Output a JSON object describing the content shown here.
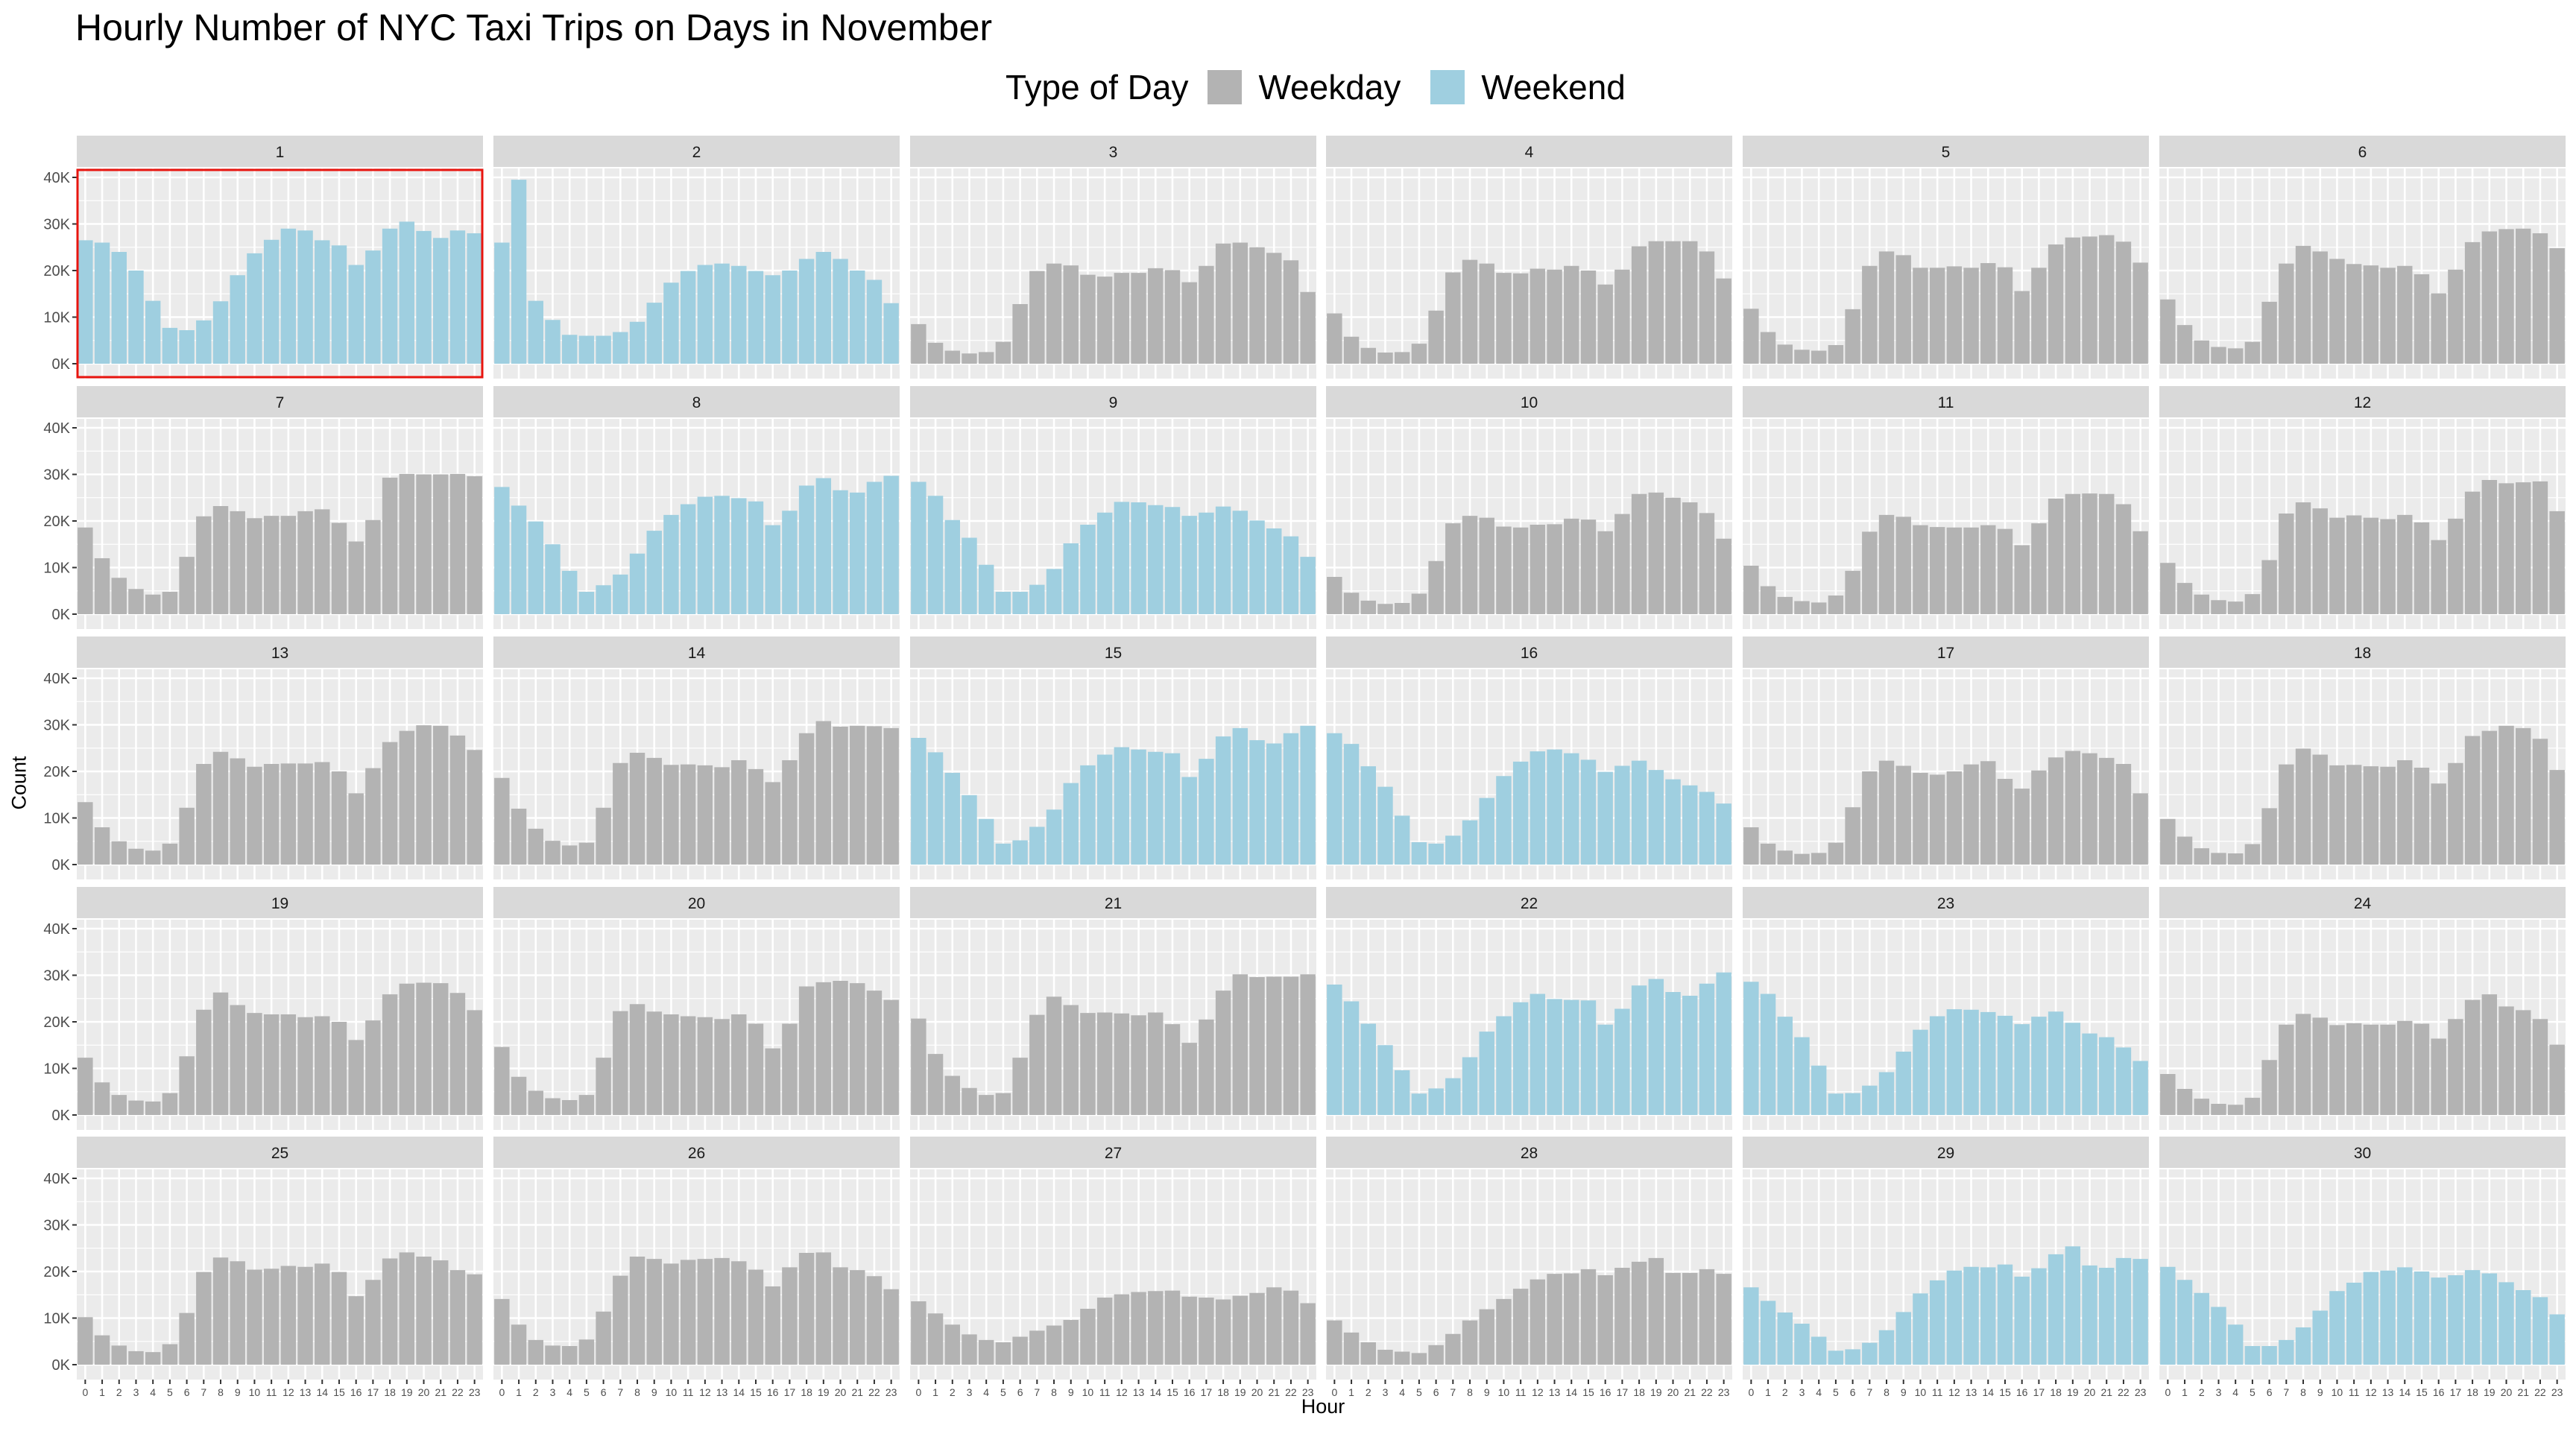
{
  "title": "Hourly Number of NYC Taxi Trips on Days in November",
  "legend": {
    "title": "Type of Day",
    "items": [
      {
        "label": "Weekday",
        "color": "#b3b3b3"
      },
      {
        "label": "Weekend",
        "color": "#9fcfe0"
      }
    ]
  },
  "colors": {
    "panel_bg": "#ebebeb",
    "strip_bg": "#d9d9d9",
    "grid": "#ffffff",
    "weekday": "#b3b3b3",
    "weekend": "#9fcfe0",
    "highlight_box": "#e8150f"
  },
  "chart_data": {
    "type": "bar",
    "facet_by": "day",
    "xlabel": "Hour",
    "ylabel": "Count",
    "ylim": [
      0,
      40000
    ],
    "y_ticks": [
      0,
      10000,
      20000,
      30000,
      40000
    ],
    "y_tick_labels": [
      "0K",
      "10K",
      "20K",
      "30K",
      "40K"
    ],
    "x": [
      0,
      1,
      2,
      3,
      4,
      5,
      6,
      7,
      8,
      9,
      10,
      11,
      12,
      13,
      14,
      15,
      16,
      17,
      18,
      19,
      20,
      21,
      22,
      23
    ],
    "grid": true,
    "legend_position": "top",
    "highlighted_panel": "1",
    "panels": [
      {
        "day": "1",
        "type": "Weekend",
        "values": [
          26500,
          26000,
          24000,
          20000,
          13500,
          7700,
          7200,
          9300,
          13400,
          19000,
          23700,
          26600,
          29000,
          28600,
          26500,
          25400,
          21200,
          24300,
          29000,
          30500,
          28500,
          27000,
          28600,
          28000
        ]
      },
      {
        "day": "2",
        "type": "Weekend",
        "values": [
          26000,
          39500,
          13500,
          9400,
          6200,
          6000,
          6000,
          6800,
          9000,
          13100,
          17400,
          19900,
          21200,
          21500,
          21000,
          19900,
          19000,
          20000,
          22500,
          24000,
          22500,
          20000,
          18000,
          13000
        ]
      },
      {
        "day": "3",
        "type": "Weekday",
        "values": [
          8500,
          4500,
          2800,
          2200,
          2500,
          4700,
          12800,
          19900,
          21500,
          21100,
          19100,
          18700,
          19500,
          19500,
          20500,
          20100,
          17500,
          21000,
          25800,
          26000,
          25000,
          23800,
          22200,
          15400
        ]
      },
      {
        "day": "4",
        "type": "Weekday",
        "values": [
          10800,
          5800,
          3400,
          2400,
          2500,
          4300,
          11400,
          19600,
          22300,
          21500,
          19500,
          19400,
          20400,
          20200,
          21000,
          20000,
          17000,
          20200,
          25200,
          26300,
          26300,
          26300,
          24100,
          18300
        ]
      },
      {
        "day": "5",
        "type": "Weekday",
        "values": [
          11800,
          6800,
          4100,
          3000,
          2800,
          4000,
          11700,
          21000,
          24100,
          23300,
          20600,
          20600,
          20900,
          20600,
          21600,
          20700,
          15600,
          20600,
          25600,
          27100,
          27300,
          27600,
          26200,
          21700
        ]
      },
      {
        "day": "6",
        "type": "Weekday",
        "values": [
          13800,
          8300,
          5000,
          3600,
          3300,
          4700,
          13300,
          21500,
          25300,
          24100,
          22500,
          21400,
          21100,
          20600,
          21000,
          19200,
          15100,
          20200,
          26100,
          28400,
          28900,
          29000,
          28000,
          24800
        ]
      },
      {
        "day": "7",
        "type": "Weekday",
        "values": [
          18600,
          12000,
          7800,
          5400,
          4200,
          4800,
          12300,
          21000,
          23200,
          22100,
          20600,
          21100,
          21100,
          22100,
          22500,
          19600,
          15600,
          20200,
          29300,
          30100,
          30000,
          30000,
          30100,
          29600
        ]
      },
      {
        "day": "8",
        "type": "Weekend",
        "values": [
          27300,
          23300,
          19900,
          15000,
          9300,
          4800,
          6200,
          8500,
          13000,
          17900,
          21300,
          23600,
          25200,
          25400,
          24900,
          24200,
          19100,
          22200,
          27600,
          29200,
          26600,
          26100,
          28400,
          29700
        ]
      },
      {
        "day": "9",
        "type": "Weekend",
        "values": [
          28400,
          25400,
          20200,
          16400,
          10600,
          4800,
          4800,
          6300,
          9700,
          15200,
          19200,
          21800,
          24100,
          24000,
          23400,
          23000,
          21100,
          21800,
          23100,
          22200,
          20100,
          18400,
          16700,
          12300
        ]
      },
      {
        "day": "10",
        "type": "Weekday",
        "values": [
          8000,
          4600,
          2900,
          2200,
          2400,
          4400,
          11400,
          19500,
          21100,
          20700,
          18800,
          18600,
          19200,
          19300,
          20500,
          20300,
          17800,
          21500,
          25800,
          26100,
          25000,
          24000,
          21700,
          16200
        ]
      },
      {
        "day": "11",
        "type": "Weekday",
        "values": [
          10400,
          6000,
          3700,
          2800,
          2500,
          4000,
          9300,
          17700,
          21300,
          20900,
          19100,
          18700,
          18600,
          18600,
          19100,
          18300,
          14800,
          19500,
          24800,
          25800,
          25900,
          25800,
          23600,
          17800
        ]
      },
      {
        "day": "12",
        "type": "Weekday",
        "values": [
          11000,
          6700,
          4200,
          3000,
          2700,
          4300,
          11600,
          21600,
          24000,
          22700,
          20700,
          21200,
          20700,
          20400,
          21300,
          19700,
          15900,
          20500,
          26300,
          28800,
          28100,
          28300,
          28500,
          22100
        ]
      },
      {
        "day": "13",
        "type": "Weekday",
        "values": [
          13400,
          8000,
          5000,
          3400,
          3000,
          4500,
          12200,
          21600,
          24200,
          22800,
          21000,
          21600,
          21700,
          21700,
          22000,
          20000,
          15300,
          20700,
          26300,
          28700,
          29900,
          29800,
          27700,
          24600
        ]
      },
      {
        "day": "14",
        "type": "Weekday",
        "values": [
          18600,
          12000,
          7700,
          5100,
          4100,
          4700,
          12200,
          21800,
          24000,
          22900,
          21400,
          21500,
          21300,
          20900,
          22400,
          20500,
          17700,
          22400,
          28200,
          30800,
          29600,
          29800,
          29700,
          29300
        ]
      },
      {
        "day": "15",
        "type": "Weekend",
        "values": [
          27200,
          24100,
          19700,
          14900,
          9800,
          4500,
          5200,
          8100,
          11800,
          17500,
          21300,
          23600,
          25200,
          24700,
          24200,
          23900,
          18800,
          22700,
          27500,
          29300,
          26700,
          26000,
          28200,
          29800
        ]
      },
      {
        "day": "16",
        "type": "Weekend",
        "values": [
          28200,
          25900,
          21100,
          16700,
          10500,
          4800,
          4500,
          6200,
          9500,
          14300,
          19000,
          22100,
          24300,
          24700,
          23900,
          22500,
          19900,
          21200,
          22300,
          20300,
          18300,
          17000,
          15600,
          13100
        ]
      },
      {
        "day": "17",
        "type": "Weekday",
        "values": [
          8000,
          4500,
          3000,
          2300,
          2500,
          4700,
          12300,
          20000,
          22300,
          21200,
          19700,
          19300,
          20000,
          21500,
          22200,
          18400,
          16300,
          20200,
          23000,
          24400,
          23900,
          22900,
          21600,
          15300
        ]
      },
      {
        "day": "18",
        "type": "Weekday",
        "values": [
          9800,
          6000,
          3500,
          2500,
          2400,
          4400,
          12100,
          21500,
          24900,
          23600,
          21300,
          21400,
          21100,
          21000,
          22400,
          20800,
          17400,
          21800,
          27600,
          28700,
          29800,
          29300,
          27000,
          20300
        ]
      },
      {
        "day": "19",
        "type": "Weekday",
        "values": [
          12300,
          7000,
          4300,
          3100,
          2900,
          4700,
          12600,
          22600,
          26300,
          23600,
          21900,
          21600,
          21600,
          21000,
          21200,
          20000,
          16100,
          20300,
          25900,
          28200,
          28400,
          28300,
          26200,
          22500
        ]
      },
      {
        "day": "20",
        "type": "Weekday",
        "values": [
          14600,
          8200,
          5200,
          3600,
          3200,
          4300,
          12300,
          22300,
          23800,
          22200,
          21600,
          21200,
          21000,
          20600,
          21600,
          19600,
          14300,
          19600,
          27600,
          28500,
          28800,
          28300,
          26700,
          24700
        ]
      },
      {
        "day": "21",
        "type": "Weekday",
        "values": [
          20700,
          13100,
          8400,
          5800,
          4300,
          4700,
          12300,
          21500,
          25400,
          23600,
          21900,
          22000,
          21800,
          21400,
          22000,
          19500,
          15500,
          20500,
          26700,
          30200,
          29600,
          29700,
          29700,
          30200
        ]
      },
      {
        "day": "22",
        "type": "Weekend",
        "values": [
          28000,
          24400,
          19600,
          15000,
          9600,
          4600,
          5700,
          7900,
          12400,
          17900,
          21200,
          24200,
          26000,
          24900,
          24700,
          24600,
          19400,
          22800,
          27800,
          29200,
          26400,
          25600,
          28200,
          30600
        ]
      },
      {
        "day": "23",
        "type": "Weekend",
        "values": [
          28600,
          26000,
          21100,
          16700,
          10600,
          4600,
          4700,
          6300,
          9200,
          13600,
          18300,
          21200,
          22700,
          22600,
          22100,
          21300,
          19500,
          21100,
          22200,
          19800,
          17500,
          16700,
          14500,
          11600
        ]
      },
      {
        "day": "24",
        "type": "Weekday",
        "values": [
          8800,
          5600,
          3500,
          2400,
          2200,
          3700,
          11800,
          19400,
          21700,
          20900,
          19300,
          19700,
          19400,
          19400,
          20200,
          19600,
          16400,
          20600,
          24700,
          25900,
          23300,
          22500,
          20600,
          15100
        ]
      },
      {
        "day": "25",
        "type": "Weekday",
        "values": [
          10200,
          6300,
          4100,
          2900,
          2700,
          4400,
          11100,
          19900,
          23000,
          22200,
          20400,
          20600,
          21200,
          21000,
          21700,
          19900,
          14700,
          18200,
          22800,
          24100,
          23200,
          22400,
          20300,
          19400
        ]
      },
      {
        "day": "26",
        "type": "Weekday",
        "values": [
          14100,
          8600,
          5300,
          4100,
          4000,
          5400,
          11400,
          19100,
          23200,
          22700,
          21700,
          22500,
          22700,
          22900,
          22200,
          20400,
          16800,
          20900,
          24000,
          24100,
          20900,
          20300,
          19000,
          16200
        ]
      },
      {
        "day": "27",
        "type": "Weekday",
        "values": [
          13600,
          11000,
          8600,
          6500,
          5300,
          4800,
          6000,
          7300,
          8400,
          9600,
          12000,
          14400,
          15100,
          15600,
          15800,
          15900,
          14600,
          14400,
          14000,
          14800,
          15400,
          16600,
          15900,
          13200
        ]
      },
      {
        "day": "28",
        "type": "Weekday",
        "values": [
          9500,
          6900,
          4800,
          3200,
          2800,
          2500,
          4200,
          6600,
          9500,
          11900,
          14100,
          16300,
          18300,
          19500,
          19600,
          20500,
          19200,
          20800,
          22100,
          22900,
          19700,
          19700,
          20500,
          19500
        ]
      },
      {
        "day": "29",
        "type": "Weekend",
        "values": [
          16600,
          13700,
          11200,
          8800,
          6000,
          3000,
          3300,
          4700,
          7400,
          11300,
          15300,
          18100,
          20200,
          21000,
          20900,
          21500,
          18900,
          20700,
          23700,
          25400,
          21300,
          20800,
          22900,
          22700
        ]
      },
      {
        "day": "30",
        "type": "Weekend",
        "values": [
          21000,
          18200,
          15400,
          12400,
          8600,
          4000,
          4000,
          5300,
          8000,
          11600,
          15800,
          17600,
          19900,
          20200,
          20900,
          20000,
          18700,
          19200,
          20300,
          19600,
          17700,
          16000,
          14500,
          10800
        ]
      }
    ]
  }
}
